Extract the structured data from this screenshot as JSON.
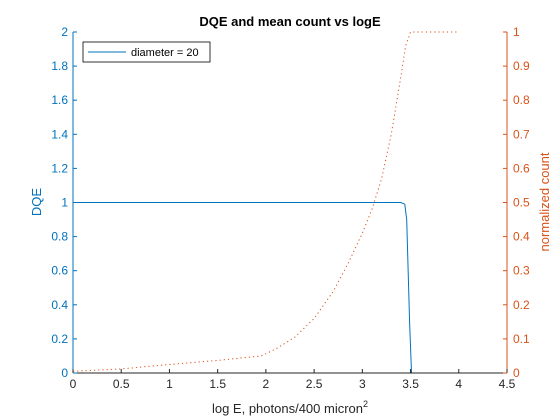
{
  "chart_data": {
    "type": "line",
    "title": "DQE and mean count vs logE",
    "xlabel": "log E, photons/400 micron",
    "xlabel_superscript": "2",
    "ylabel_left": "DQE",
    "ylabel_right": "normalized count",
    "xlim": [
      0,
      4.5
    ],
    "ylim_left": [
      0,
      2
    ],
    "ylim_right": [
      0,
      1
    ],
    "x_ticks": [
      "0",
      "0.5",
      "1",
      "1.5",
      "2",
      "2.5",
      "3",
      "3.5",
      "4",
      "4.5"
    ],
    "y_left_ticks": [
      "0",
      "0.2",
      "0.4",
      "0.6",
      "0.8",
      "1",
      "1.2",
      "1.4",
      "1.6",
      "1.8",
      "2"
    ],
    "y_right_ticks": [
      "0",
      "0.1",
      "0.2",
      "0.3",
      "0.4",
      "0.5",
      "0.6",
      "0.7",
      "0.8",
      "0.9",
      "1"
    ],
    "grid": false,
    "legend_position": "top-left",
    "series": [
      {
        "name": "diameter = 20",
        "axis": "left",
        "style": "solid",
        "color": "#0072BD",
        "x": [
          0,
          0.5,
          1,
          1.5,
          2,
          2.5,
          3,
          3.4,
          3.44,
          3.46,
          3.49,
          3.51,
          3.6,
          4.5
        ],
        "y": [
          1,
          1,
          1,
          1,
          1,
          1,
          1,
          1,
          0.99,
          0.9,
          0.3,
          0,
          0,
          0
        ]
      },
      {
        "axis": "right",
        "style": "dotted",
        "color": "#D95319",
        "x": [
          0,
          0.5,
          1,
          1.5,
          1.95,
          2.1,
          2.3,
          2.5,
          2.7,
          2.85,
          3.0,
          3.1,
          3.2,
          3.3,
          3.4,
          3.45,
          3.5,
          4.0
        ],
        "y": [
          0.005,
          0.012,
          0.025,
          0.037,
          0.05,
          0.07,
          0.105,
          0.16,
          0.24,
          0.32,
          0.41,
          0.48,
          0.57,
          0.7,
          0.87,
          0.96,
          1.0,
          1.0
        ]
      }
    ]
  }
}
